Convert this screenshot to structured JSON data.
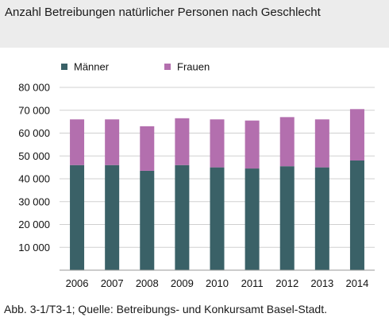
{
  "header": {
    "title": "Anzahl Betreibungen natürlicher Personen nach Geschlecht"
  },
  "caption": "Abb. 3-1/T3-1; Quelle: Betreibungs- und Konkursamt Basel-Stadt.",
  "colors": {
    "maenner": "#3a6167",
    "frauen": "#b36fae",
    "grid": "#d0d0d0"
  },
  "chart_data": {
    "type": "bar",
    "stacked": true,
    "title": "Anzahl Betreibungen natürlicher Personen nach Geschlecht",
    "xlabel": "",
    "ylabel": "",
    "categories": [
      "2006",
      "2007",
      "2008",
      "2009",
      "2010",
      "2011",
      "2012",
      "2013",
      "2014"
    ],
    "series": [
      {
        "name": "Männer",
        "values": [
          46000,
          46000,
          43500,
          46000,
          45000,
          44500,
          45500,
          45000,
          48000
        ]
      },
      {
        "name": "Frauen",
        "values": [
          20000,
          20000,
          19500,
          20500,
          21000,
          21000,
          21500,
          21000,
          22500
        ]
      }
    ],
    "ylim": [
      0,
      80000
    ],
    "yticks": [
      0,
      10000,
      20000,
      30000,
      40000,
      50000,
      60000,
      70000,
      80000
    ],
    "ytick_labels": [
      "",
      "10 000",
      "20 000",
      "30 000",
      "40 000",
      "50 000",
      "60 000",
      "70 000",
      "80 000"
    ],
    "legend": "top-left",
    "grid": true
  }
}
